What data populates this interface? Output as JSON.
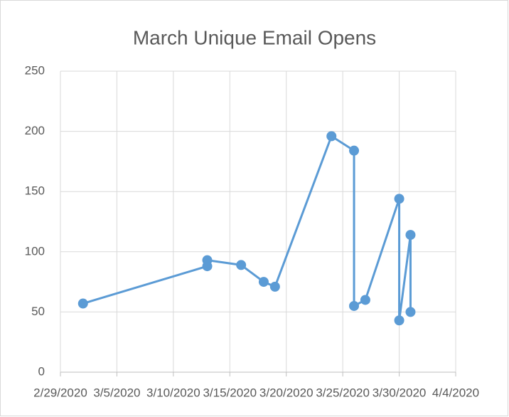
{
  "chart_data": {
    "type": "line",
    "title": "March Unique Email Opens",
    "x": [
      "2020-03-02",
      "2020-03-13",
      "2020-03-13",
      "2020-03-16",
      "2020-03-18",
      "2020-03-19",
      "2020-03-24",
      "2020-03-26",
      "2020-03-26",
      "2020-03-27",
      "2020-03-30",
      "2020-03-30",
      "2020-03-31",
      "2020-03-31"
    ],
    "values": [
      57,
      88,
      93,
      89,
      75,
      71,
      196,
      184,
      55,
      60,
      144,
      43,
      114,
      50
    ],
    "color": "#5b9bd5",
    "xlim": [
      "2020-02-29",
      "2020-04-04"
    ],
    "xticks": [
      {
        "value": "2020-02-29",
        "label": "2/29/2020"
      },
      {
        "value": "2020-03-05",
        "label": "3/5/2020"
      },
      {
        "value": "2020-03-10",
        "label": "3/10/2020"
      },
      {
        "value": "2020-03-15",
        "label": "3/15/2020"
      },
      {
        "value": "2020-03-20",
        "label": "3/20/2020"
      },
      {
        "value": "2020-03-25",
        "label": "3/25/2020"
      },
      {
        "value": "2020-03-30",
        "label": "3/30/2020"
      },
      {
        "value": "2020-04-04",
        "label": "4/4/2020"
      }
    ],
    "ylim": [
      0,
      250
    ],
    "yticks": [
      0,
      50,
      100,
      150,
      200,
      250
    ],
    "grid": true
  }
}
